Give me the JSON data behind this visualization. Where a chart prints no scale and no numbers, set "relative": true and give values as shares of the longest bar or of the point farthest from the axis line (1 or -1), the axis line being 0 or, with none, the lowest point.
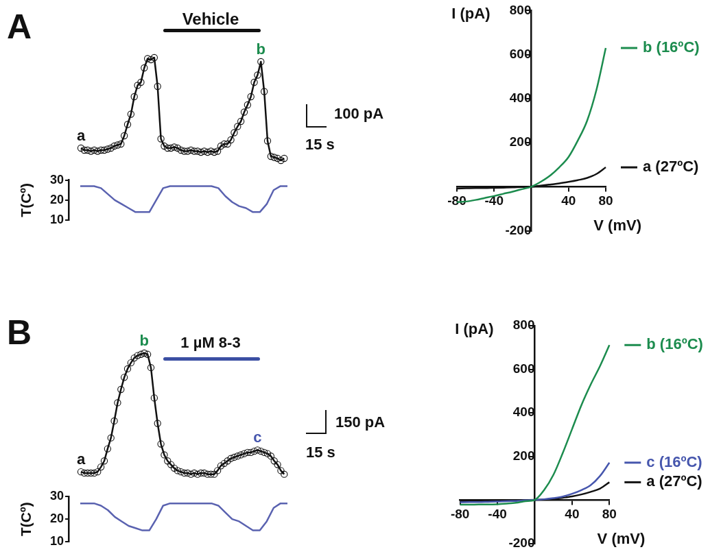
{
  "chart_data": [
    {
      "type": "line",
      "title": "A",
      "categories": [
        null,
        null,
        null,
        null,
        null,
        null,
        null,
        null,
        null,
        null,
        null,
        null,
        null,
        null,
        null,
        null,
        null,
        null,
        null,
        null,
        null,
        null,
        null,
        null,
        null,
        null,
        null,
        null,
        null,
        null,
        null,
        null,
        null,
        null,
        null,
        null,
        null,
        null,
        null,
        null,
        null,
        null,
        null,
        null,
        null,
        null,
        null,
        null,
        null,
        null,
        null,
        null,
        null,
        null,
        null,
        null,
        null,
        null,
        null,
        null,
        null,
        null
      ],
      "values": [
        0.12,
        0.1,
        0.1,
        0.09,
        0.1,
        0.09,
        0.1,
        0.1,
        0.11,
        0.12,
        0.14,
        0.15,
        0.16,
        0.24,
        0.35,
        0.45,
        0.62,
        0.73,
        0.76,
        0.9,
        0.99,
        0.98,
        1,
        0.72,
        0.21,
        0.14,
        0.12,
        0.12,
        0.13,
        0.12,
        0.1,
        0.09,
        0.09,
        0.1,
        0.09,
        0.09,
        0.08,
        0.09,
        0.08,
        0.09,
        0.08,
        0.09,
        0.14,
        0.16,
        0.16,
        0.2,
        0.27,
        0.33,
        0.38,
        0.47,
        0.54,
        0.62,
        0.76,
        0.83,
        0.96,
        0.67,
        0.19,
        0.04,
        0.03,
        0.02,
        0,
        0.02
      ],
      "color": "#111111",
      "relative": true,
      "marker": "circle",
      "tick_labels": false,
      "annotations": [
        "Vehicle",
        {
          "text": "a",
          "y": 0.12
        },
        {
          "text": "b",
          "y": 0.96
        },
        "100 pA",
        "15 s"
      ]
    },
    {
      "type": "line",
      "categories": [
        null,
        null,
        null,
        null,
        null,
        null,
        null,
        null,
        null,
        null,
        null,
        null,
        null,
        null,
        null,
        null,
        null,
        null,
        null,
        null,
        null,
        null,
        null,
        null,
        null,
        null,
        null,
        null,
        null,
        null,
        null
      ],
      "values": [
        27,
        27,
        27,
        26,
        23,
        20,
        18,
        16,
        14,
        14,
        14,
        20,
        26,
        27,
        27,
        27,
        27,
        27,
        27,
        27,
        26,
        22,
        19,
        17,
        16,
        14,
        14,
        18,
        25,
        27,
        27
      ],
      "color": "#5a62b0",
      "ylim": [
        10,
        30
      ],
      "yticks": [
        10,
        20,
        30
      ],
      "ylabel": "T(Cº)",
      "tick_labels": "y"
    },
    {
      "type": "line",
      "x": [
        -80,
        -70,
        -60,
        -50,
        -40,
        -30,
        -20,
        -10,
        0,
        10,
        20,
        30,
        40,
        50,
        60,
        70,
        80
      ],
      "series": [
        {
          "name": "b (16ºC)",
          "color": "#1c8c4e",
          "values": [
            -70,
            -67,
            -60,
            -51,
            -42,
            -32,
            -22,
            -11,
            0,
            22,
            50,
            88,
            135,
            210,
            300,
            440,
            630
          ]
        },
        {
          "name": "a (27ºC)",
          "color": "#111111",
          "values": [
            -8,
            -7,
            -6,
            -6,
            -5,
            -4,
            -3,
            -1,
            0,
            5,
            10,
            15,
            22,
            30,
            40,
            58,
            88
          ]
        }
      ],
      "xlim": [
        -80,
        80
      ],
      "xticks": [
        -80,
        -40,
        40,
        80
      ],
      "ylim": [
        -200,
        800
      ],
      "yticks": [
        -200,
        200,
        400,
        600,
        800
      ],
      "xlabel": "V (mV)",
      "ylabel": "I (pA)",
      "legend": "right"
    },
    {
      "type": "line",
      "title": "B",
      "categories": [
        null,
        null,
        null,
        null,
        null,
        null,
        null,
        null,
        null,
        null,
        null,
        null,
        null,
        null,
        null,
        null,
        null,
        null,
        null,
        null,
        null,
        null,
        null,
        null,
        null,
        null,
        null,
        null,
        null,
        null,
        null,
        null,
        null,
        null,
        null,
        null,
        null,
        null,
        null,
        null,
        null,
        null,
        null,
        null,
        null,
        null,
        null,
        null,
        null,
        null,
        null,
        null,
        null,
        null,
        null,
        null,
        null,
        null,
        null,
        null,
        null,
        null
      ],
      "values": [
        0.02,
        0.01,
        0.01,
        0.01,
        0.01,
        0.02,
        0.06,
        0.11,
        0.21,
        0.3,
        0.44,
        0.59,
        0.7,
        0.8,
        0.87,
        0.92,
        0.96,
        0.98,
        0.99,
        1,
        0.99,
        0.88,
        0.63,
        0.42,
        0.25,
        0.16,
        0.11,
        0.08,
        0.05,
        0.03,
        0.02,
        0.01,
        0.01,
        0,
        0.01,
        0,
        0.01,
        0.01,
        0,
        0,
        0,
        0.03,
        0.07,
        0.09,
        0.11,
        0.13,
        0.14,
        0.15,
        0.16,
        0.17,
        0.18,
        0.18,
        0.19,
        0.2,
        0.19,
        0.18,
        0.17,
        0.15,
        0.11,
        0.08,
        0.03,
        0
      ],
      "color": "#111111",
      "relative": true,
      "marker": "circle",
      "tick_labels": false,
      "annotations": [
        "1 µM 8-3",
        {
          "text": "a",
          "y": 0.02
        },
        {
          "text": "b",
          "y": 1
        },
        {
          "text": "c",
          "y": 0.2
        },
        "150 pA",
        "15 s"
      ]
    },
    {
      "type": "line",
      "categories": [
        null,
        null,
        null,
        null,
        null,
        null,
        null,
        null,
        null,
        null,
        null,
        null,
        null,
        null,
        null,
        null,
        null,
        null,
        null,
        null,
        null,
        null,
        null,
        null,
        null,
        null,
        null,
        null,
        null,
        null,
        null
      ],
      "values": [
        27,
        27,
        27,
        26,
        24,
        21,
        19,
        17,
        16,
        15,
        15,
        20,
        26,
        27,
        27,
        27,
        27,
        27,
        27,
        27,
        26,
        23,
        20,
        19,
        17,
        15,
        15,
        19,
        25,
        27,
        27
      ],
      "color": "#5a62b0",
      "ylim": [
        10,
        30
      ],
      "yticks": [
        10,
        20,
        30
      ],
      "ylabel": "T(Cº)",
      "tick_labels": "y"
    },
    {
      "type": "line",
      "x": [
        -80,
        -70,
        -60,
        -50,
        -40,
        -30,
        -20,
        -10,
        0,
        10,
        20,
        30,
        40,
        50,
        60,
        70,
        80
      ],
      "series": [
        {
          "name": "b (16ºC)",
          "color": "#1c8c4e",
          "values": [
            -22,
            -22,
            -21,
            -21,
            -20,
            -17,
            -13,
            -6,
            0,
            45,
            115,
            215,
            325,
            435,
            530,
            615,
            711
          ]
        },
        {
          "name": "c (16ºC)",
          "color": "#4656ad",
          "values": [
            -11,
            -10,
            -10,
            -9,
            -8,
            -6,
            -5,
            -2,
            0,
            3,
            8,
            15,
            28,
            45,
            68,
            110,
            171
          ]
        },
        {
          "name": "a (27ºC)",
          "color": "#111111",
          "values": [
            -5,
            -5,
            -4,
            -4,
            -3,
            -2,
            -2,
            -1,
            0,
            2,
            5,
            10,
            16,
            25,
            37,
            52,
            81
          ]
        }
      ],
      "xlim": [
        -80,
        80
      ],
      "xticks": [
        -80,
        -40,
        40,
        80
      ],
      "ylim": [
        -200,
        800
      ],
      "yticks": [
        -200,
        200,
        400,
        600,
        800
      ],
      "xlabel": "V (mV)",
      "ylabel": "I (pA)",
      "legend": "right"
    }
  ]
}
